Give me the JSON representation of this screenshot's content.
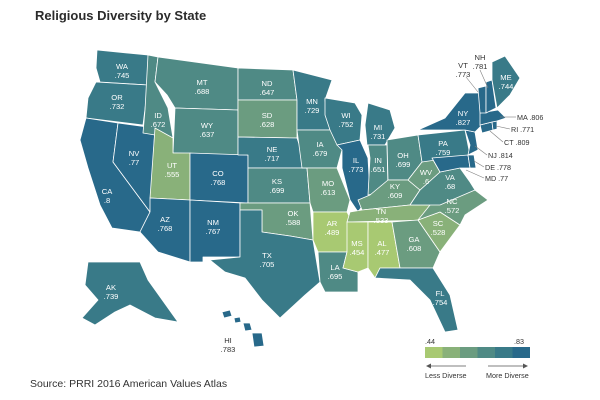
{
  "title": "Religious Diversity by State",
  "source": "Source: PRRI 2016 American Values Atlas",
  "legend": {
    "min_label": ".44",
    "max_label": ".83",
    "less_label": "Less Diverse",
    "more_label": "More Diverse",
    "colors": [
      "#a8c972",
      "#89b179",
      "#6b9c80",
      "#4f8a85",
      "#397a88",
      "#28698a"
    ]
  },
  "states": {
    "WA": {
      "abbr": "WA",
      "value": ".745"
    },
    "OR": {
      "abbr": "OR",
      "value": ".732"
    },
    "CA": {
      "abbr": "CA",
      "value": ".8"
    },
    "NV": {
      "abbr": "NV",
      "value": ".77"
    },
    "ID": {
      "abbr": "ID",
      "value": ".672"
    },
    "MT": {
      "abbr": "MT",
      "value": ".688"
    },
    "WY": {
      "abbr": "WY",
      "value": ".637"
    },
    "UT": {
      "abbr": "UT",
      "value": ".555"
    },
    "AZ": {
      "abbr": "AZ",
      "value": ".768"
    },
    "CO": {
      "abbr": "CO",
      "value": ".768"
    },
    "NM": {
      "abbr": "NM",
      "value": ".767"
    },
    "ND": {
      "abbr": "ND",
      "value": ".647"
    },
    "SD": {
      "abbr": "SD",
      "value": ".628"
    },
    "NE": {
      "abbr": "NE",
      "value": ".717"
    },
    "KS": {
      "abbr": "KS",
      "value": ".699"
    },
    "OK": {
      "abbr": "OK",
      "value": ".588"
    },
    "TX": {
      "abbr": "TX",
      "value": ".705"
    },
    "MN": {
      "abbr": "MN",
      "value": ".729"
    },
    "IA": {
      "abbr": "IA",
      "value": ".679"
    },
    "MO": {
      "abbr": "MO",
      "value": ".613"
    },
    "AR": {
      "abbr": "AR",
      "value": ".489"
    },
    "LA": {
      "abbr": "LA",
      "value": ".695"
    },
    "WI": {
      "abbr": "WI",
      "value": ".752"
    },
    "IL": {
      "abbr": "IL",
      "value": ".773"
    },
    "MI": {
      "abbr": "MI",
      "value": ".731"
    },
    "IN": {
      "abbr": "IN",
      "value": ".651"
    },
    "OH": {
      "abbr": "OH",
      "value": ".699"
    },
    "KY": {
      "abbr": "KY",
      "value": ".609"
    },
    "TN": {
      "abbr": "TN",
      "value": ".533"
    },
    "MS": {
      "abbr": "MS",
      "value": ".454"
    },
    "AL": {
      "abbr": "AL",
      "value": ".477"
    },
    "GA": {
      "abbr": "GA",
      "value": ".608"
    },
    "FL": {
      "abbr": "FL",
      "value": ".754"
    },
    "SC": {
      "abbr": "SC",
      "value": ".528"
    },
    "NC": {
      "abbr": "NC",
      "value": ".572"
    },
    "VA": {
      "abbr": "VA",
      "value": ".68"
    },
    "WV": {
      "abbr": "WV",
      "value": ".6"
    },
    "PA": {
      "abbr": "PA",
      "value": ".759"
    },
    "NY": {
      "abbr": "NY",
      "value": ".827"
    },
    "ME": {
      "abbr": "ME",
      "value": ".744"
    },
    "AK": {
      "abbr": "AK",
      "value": ".739"
    },
    "HI": {
      "abbr": "HI",
      "value": ".783"
    },
    "VT": {
      "abbr": "VT",
      "value": ".773"
    },
    "NH": {
      "abbr": "NH",
      "value": ".781"
    },
    "MA": {
      "abbr": "MA",
      "value": ".806"
    },
    "RI": {
      "abbr": "RI",
      "value": ".771"
    },
    "CT": {
      "abbr": "CT",
      "value": ".809"
    },
    "NJ": {
      "abbr": "NJ",
      "value": ".814"
    },
    "DE": {
      "abbr": "DE",
      "value": ".778"
    },
    "MD": {
      "abbr": "MD",
      "value": ".77"
    }
  },
  "callouts": {
    "MA": "MA .806",
    "RI": "RI .771",
    "CT": "CT .809",
    "NJ": "NJ .814",
    "DE": "DE .778",
    "MD": "MD .77"
  }
}
